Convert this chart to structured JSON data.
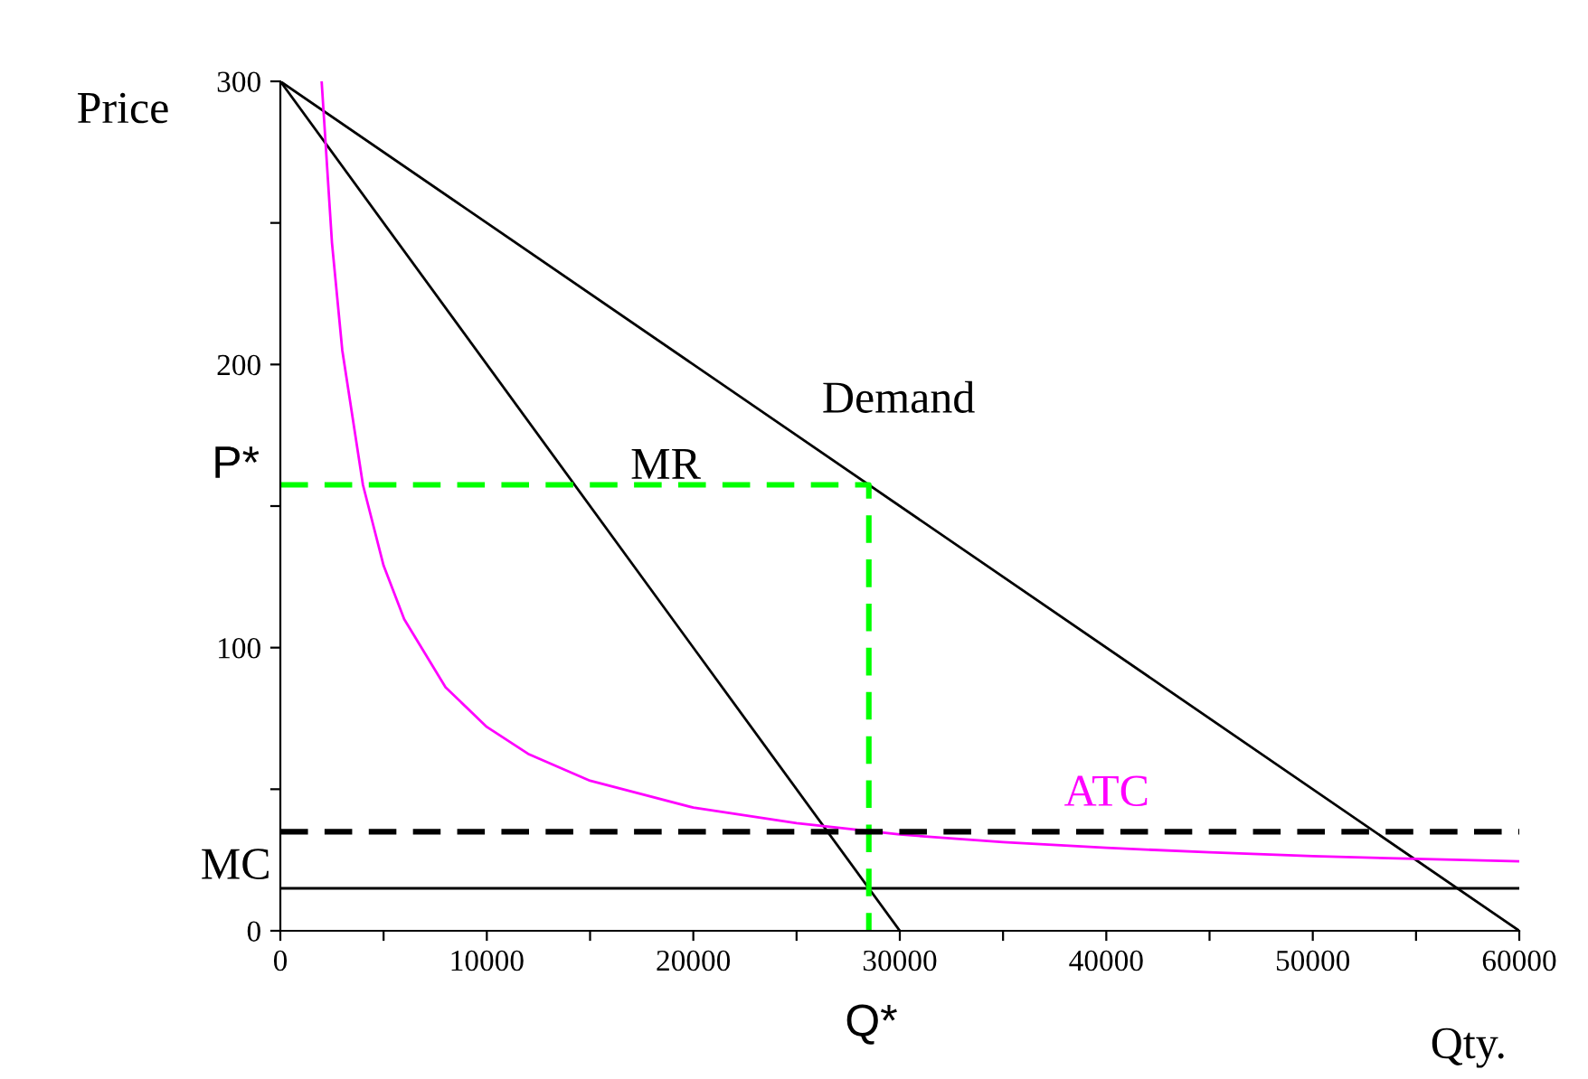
{
  "chart_data": {
    "type": "line",
    "xlabel": "Qty.",
    "ylabel": "Price",
    "xlim": [
      0,
      60000
    ],
    "ylim": [
      0,
      300
    ],
    "xticks": [
      0,
      {
        "value": 5000,
        "label": null
      },
      10000,
      {
        "value": 15000,
        "label": null
      },
      20000,
      {
        "value": 25000,
        "label": null
      },
      30000,
      {
        "value": 35000,
        "label": null
      },
      40000,
      {
        "value": 45000,
        "label": null
      },
      50000,
      {
        "value": 55000,
        "label": null
      },
      60000
    ],
    "yticks": [
      0,
      {
        "value": 50,
        "label": null
      },
      100,
      {
        "value": 150,
        "label": null
      },
      200,
      {
        "value": 250,
        "label": null
      },
      300
    ],
    "grid": false,
    "legend": false,
    "marker": "none",
    "series": [
      {
        "color": "#000000",
        "x": [
          0,
          60000
        ],
        "values": [
          300,
          0
        ]
      },
      {
        "color": "#000000",
        "x": [
          0,
          30000
        ],
        "values": [
          300,
          0
        ]
      },
      {
        "color": "#000000",
        "x": [
          0,
          60000
        ],
        "values": [
          15,
          15
        ]
      },
      {
        "color": "#ff00ff",
        "x": [
          2000,
          2500,
          3000,
          4000,
          5000,
          6000,
          8000,
          10000,
          12000,
          15000,
          20000,
          25000,
          30000,
          35000,
          40000,
          45000,
          50000,
          55000,
          60000
        ],
        "values": [
          300,
          243,
          205,
          157.5,
          129,
          110,
          86,
          72,
          62.5,
          53,
          43.5,
          38,
          34,
          31.3,
          29.3,
          27.7,
          26.4,
          25.4,
          24.5
        ]
      },
      {
        "color": "#00ff00",
        "line_style": "dashed",
        "x": [
          0,
          28500,
          28500
        ],
        "values": [
          157.5,
          157.5,
          0
        ]
      },
      {
        "color": "#000000",
        "line_style": "dashed",
        "x": [
          0,
          60000
        ],
        "values": [
          35,
          35
        ]
      }
    ],
    "annotations": [
      "Demand",
      "MR",
      "ATC",
      "MC",
      "P*",
      "Q*"
    ]
  }
}
